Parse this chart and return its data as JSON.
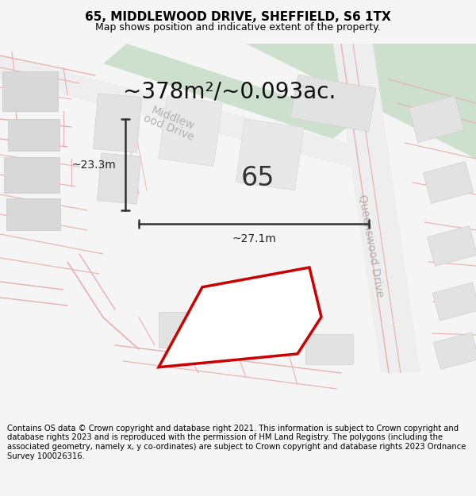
{
  "title": "65, MIDDLEWOOD DRIVE, SHEFFIELD, S6 1TX",
  "subtitle": "Map shows position and indicative extent of the property.",
  "area_text": "~378m²/~0.093ac.",
  "label": "65",
  "dim_width": "~27.1m",
  "dim_height": "~23.3m",
  "footer": "Contains OS data © Crown copyright and database right 2021. This information is subject to Crown copyright and database rights 2023 and is reproduced with the permission of HM Land Registry. The polygons (including the associated geometry, namely x, y co-ordinates) are subject to Crown copyright and database rights 2023 Ordnance Survey 100026316.",
  "bg_color": "#f5f5f5",
  "map_bg": "#f8f8f8",
  "green_area": "#cde0cd",
  "property_edge": "#cc0000",
  "property_fill": "#ffffff",
  "building_fill": "#e2e2e2",
  "building_edge": "#d0d0d0",
  "road_fill": "#f0f0f0",
  "dim_color": "#333333",
  "street_label_color": "#b0b0b0",
  "road_line_color": "#e8b0b0",
  "title_fontsize": 11,
  "subtitle_fontsize": 9,
  "area_fontsize": 20,
  "label_fontsize": 24,
  "footer_fontsize": 7.2,
  "dim_fontsize": 10
}
